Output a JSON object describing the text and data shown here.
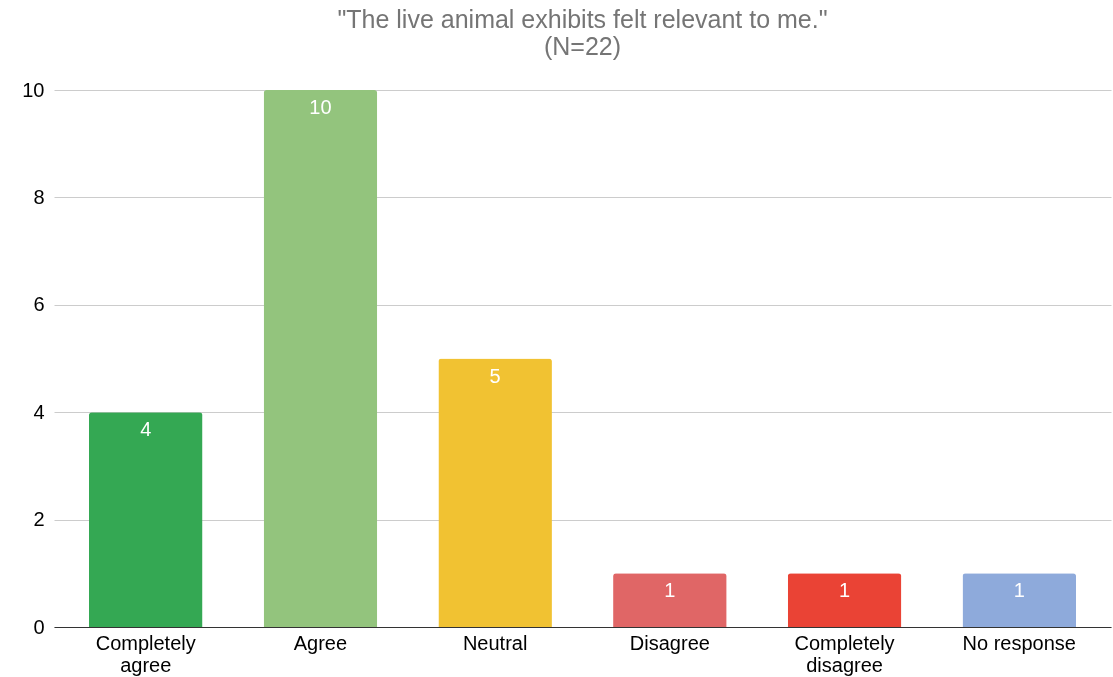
{
  "chart_data": {
    "type": "bar",
    "title": "\"The live animal exhibits felt relevant to me.\"",
    "subtitle": "(N=22)",
    "categories": [
      "Completely agree",
      "Agree",
      "Neutral",
      "Disagree",
      "Completely disagree",
      "No response"
    ],
    "values": [
      4,
      10,
      5,
      1,
      1,
      1
    ],
    "colors": [
      "#34a853",
      "#93c47d",
      "#f1c232",
      "#e06666",
      "#ea4335",
      "#8eaadb"
    ],
    "ylim": [
      0,
      10
    ],
    "yticks": [
      0,
      2,
      4,
      6,
      8,
      10
    ],
    "grid": "y",
    "data_labels": true
  }
}
